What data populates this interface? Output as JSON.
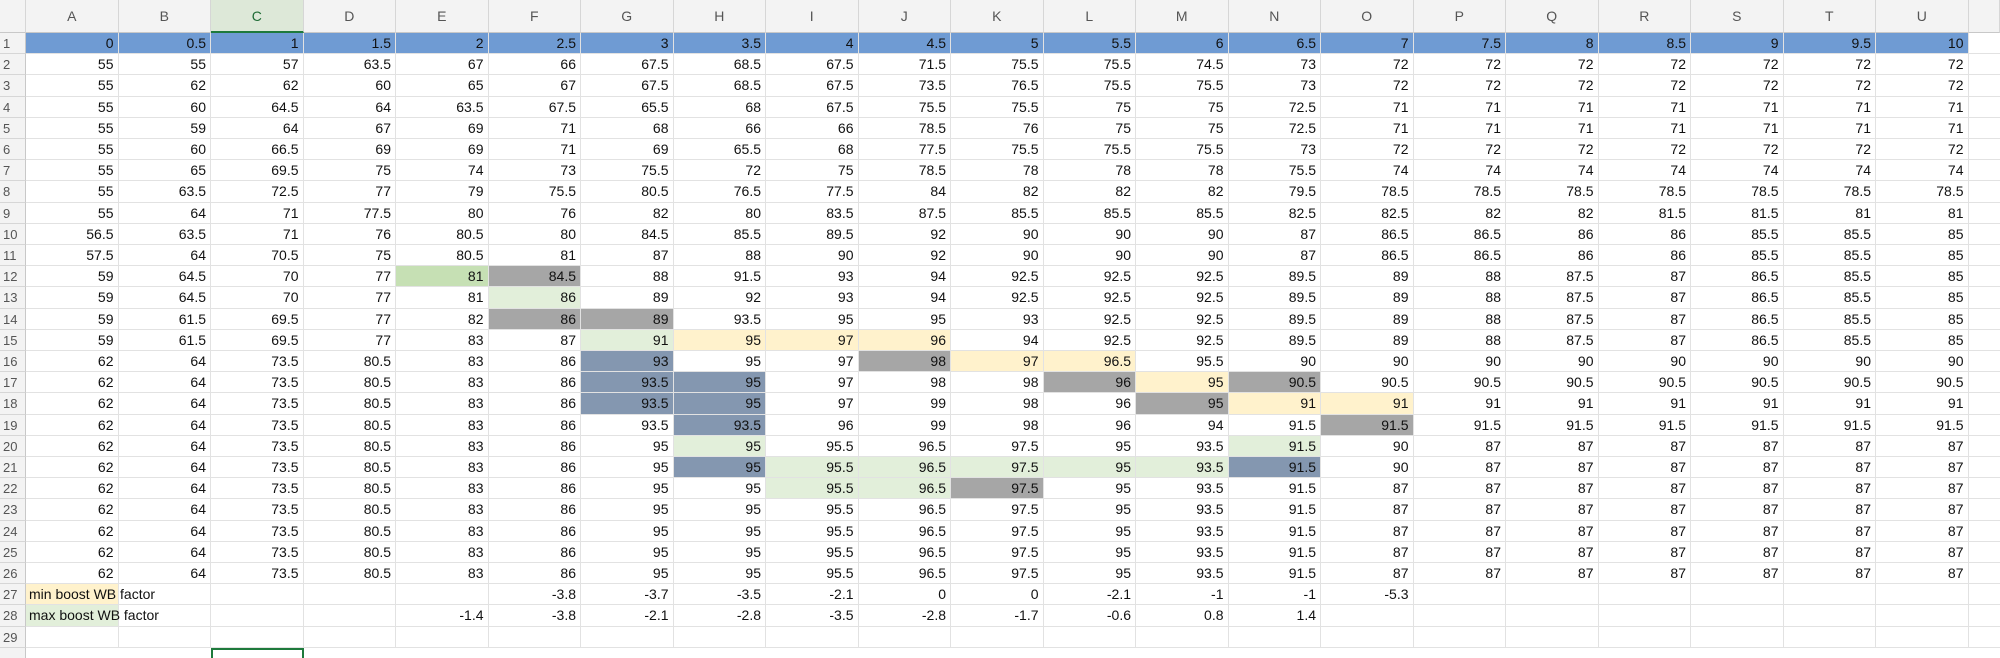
{
  "table": {
    "columns": [
      "A",
      "B",
      "C",
      "D",
      "E",
      "F",
      "G",
      "H",
      "I",
      "J",
      "K",
      "L",
      "M",
      "N",
      "O",
      "P",
      "Q",
      "R",
      "S",
      "T",
      "U"
    ],
    "row_numbers": [
      1,
      2,
      3,
      4,
      5,
      6,
      7,
      8,
      9,
      10,
      11,
      12,
      13,
      14,
      15,
      16,
      17,
      18,
      19,
      20,
      21,
      22,
      23,
      24,
      25,
      26,
      27,
      28,
      29
    ],
    "rows": [
      [
        0,
        0.5,
        1,
        1.5,
        2,
        2.5,
        3,
        3.5,
        4,
        4.5,
        5,
        5.5,
        6,
        6.5,
        7,
        7.5,
        8,
        8.5,
        9,
        9.5,
        10
      ],
      [
        55,
        55,
        57,
        63.5,
        67,
        66,
        67.5,
        68.5,
        67.5,
        71.5,
        75.5,
        75.5,
        74.5,
        73,
        72,
        72,
        72,
        72,
        72,
        72,
        72
      ],
      [
        55,
        62,
        62,
        60,
        65,
        67,
        67.5,
        68.5,
        67.5,
        73.5,
        76.5,
        75.5,
        75.5,
        73,
        72,
        72,
        72,
        72,
        72,
        72,
        72
      ],
      [
        55,
        60,
        64.5,
        64,
        63.5,
        67.5,
        65.5,
        68,
        67.5,
        75.5,
        75.5,
        75,
        75,
        72.5,
        71,
        71,
        71,
        71,
        71,
        71,
        71
      ],
      [
        55,
        59,
        64,
        67,
        69,
        71,
        68,
        66,
        66,
        78.5,
        76,
        75,
        75,
        72.5,
        71,
        71,
        71,
        71,
        71,
        71,
        71
      ],
      [
        55,
        60,
        66.5,
        69,
        69,
        71,
        69,
        65.5,
        68,
        77.5,
        75.5,
        75.5,
        75.5,
        73,
        72,
        72,
        72,
        72,
        72,
        72,
        72
      ],
      [
        55,
        65,
        69.5,
        75,
        74,
        73,
        75.5,
        72,
        75,
        78.5,
        78,
        78,
        78,
        75.5,
        74,
        74,
        74,
        74,
        74,
        74,
        74
      ],
      [
        55,
        63.5,
        72.5,
        77,
        79,
        75.5,
        80.5,
        76.5,
        77.5,
        84,
        82,
        82,
        82,
        79.5,
        78.5,
        78.5,
        78.5,
        78.5,
        78.5,
        78.5,
        78.5
      ],
      [
        55,
        64,
        71,
        77.5,
        80,
        76,
        82,
        80,
        83.5,
        87.5,
        85.5,
        85.5,
        85.5,
        82.5,
        82.5,
        82,
        82,
        81.5,
        81.5,
        81,
        81
      ],
      [
        56.5,
        63.5,
        71,
        76,
        80.5,
        80,
        84.5,
        85.5,
        89.5,
        92,
        90,
        90,
        90,
        87,
        86.5,
        86.5,
        86,
        86,
        85.5,
        85.5,
        85
      ],
      [
        57.5,
        64,
        70.5,
        75,
        80.5,
        81,
        87,
        88,
        90,
        92,
        90,
        90,
        90,
        87,
        86.5,
        86.5,
        86,
        86,
        85.5,
        85.5,
        85
      ],
      [
        59,
        64.5,
        70,
        77,
        81,
        84.5,
        88,
        91.5,
        93,
        94,
        92.5,
        92.5,
        92.5,
        89.5,
        89,
        88,
        87.5,
        87,
        86.5,
        85.5,
        85
      ],
      [
        59,
        64.5,
        70,
        77,
        81,
        86,
        89,
        92,
        93,
        94,
        92.5,
        92.5,
        92.5,
        89.5,
        89,
        88,
        87.5,
        87,
        86.5,
        85.5,
        85
      ],
      [
        59,
        61.5,
        69.5,
        77,
        82,
        86,
        89,
        93.5,
        95,
        95,
        93,
        92.5,
        92.5,
        89.5,
        89,
        88,
        87.5,
        87,
        86.5,
        85.5,
        85
      ],
      [
        59,
        61.5,
        69.5,
        77,
        83,
        87,
        91,
        95,
        97,
        96,
        94,
        92.5,
        92.5,
        89.5,
        89,
        88,
        87.5,
        87,
        86.5,
        85.5,
        85
      ],
      [
        62,
        64,
        73.5,
        80.5,
        83,
        86,
        93,
        95,
        97,
        98,
        97,
        96.5,
        95.5,
        90,
        90,
        90,
        90,
        90,
        90,
        90,
        90
      ],
      [
        62,
        64,
        73.5,
        80.5,
        83,
        86,
        93.5,
        95,
        97,
        98,
        98,
        96,
        95,
        90.5,
        90.5,
        90.5,
        90.5,
        90.5,
        90.5,
        90.5,
        90.5
      ],
      [
        62,
        64,
        73.5,
        80.5,
        83,
        86,
        93.5,
        95,
        97,
        99,
        98,
        96,
        95,
        91,
        91,
        91,
        91,
        91,
        91,
        91,
        91
      ],
      [
        62,
        64,
        73.5,
        80.5,
        83,
        86,
        93.5,
        93.5,
        96,
        99,
        98,
        96,
        94,
        91.5,
        91.5,
        91.5,
        91.5,
        91.5,
        91.5,
        91.5,
        91.5
      ],
      [
        62,
        64,
        73.5,
        80.5,
        83,
        86,
        95,
        95,
        95.5,
        96.5,
        97.5,
        95,
        93.5,
        91.5,
        90,
        87,
        87,
        87,
        87,
        87,
        87
      ],
      [
        62,
        64,
        73.5,
        80.5,
        83,
        86,
        95,
        95,
        95.5,
        96.5,
        97.5,
        95,
        93.5,
        91.5,
        90,
        87,
        87,
        87,
        87,
        87,
        87
      ],
      [
        62,
        64,
        73.5,
        80.5,
        83,
        86,
        95,
        95,
        95.5,
        96.5,
        97.5,
        95,
        93.5,
        91.5,
        87,
        87,
        87,
        87,
        87,
        87,
        87
      ],
      [
        62,
        64,
        73.5,
        80.5,
        83,
        86,
        95,
        95,
        95.5,
        96.5,
        97.5,
        95,
        93.5,
        91.5,
        87,
        87,
        87,
        87,
        87,
        87,
        87
      ],
      [
        62,
        64,
        73.5,
        80.5,
        83,
        86,
        95,
        95,
        95.5,
        96.5,
        97.5,
        95,
        93.5,
        91.5,
        87,
        87,
        87,
        87,
        87,
        87,
        87
      ],
      [
        62,
        64,
        73.5,
        80.5,
        83,
        86,
        95,
        95,
        95.5,
        96.5,
        97.5,
        95,
        93.5,
        91.5,
        87,
        87,
        87,
        87,
        87,
        87,
        87
      ],
      [
        62,
        64,
        73.5,
        80.5,
        83,
        86,
        95,
        95,
        95.5,
        96.5,
        97.5,
        95,
        93.5,
        91.5,
        87,
        87,
        87,
        87,
        87,
        87,
        87
      ],
      [
        "min boost WB factor",
        null,
        null,
        null,
        null,
        -3.8,
        -3.7,
        -3.5,
        -2.1,
        0,
        0,
        -2.1,
        -1,
        -1,
        -5.3,
        null,
        null,
        null,
        null,
        null,
        null
      ],
      [
        "max boost WB factor",
        null,
        null,
        null,
        -1.4,
        -3.8,
        -2.1,
        -2.8,
        -3.5,
        -2.8,
        -1.7,
        -0.6,
        0.8,
        1.4,
        null,
        null,
        null,
        null,
        null,
        null,
        null
      ],
      [
        null,
        null,
        null,
        null,
        null,
        null,
        null,
        null,
        null,
        null,
        null,
        null,
        null,
        null,
        null,
        null,
        null,
        null,
        null,
        null,
        null
      ]
    ],
    "row_fills": [
      {
        "row": 1,
        "color": "#6f9bd3"
      }
    ],
    "fills": [
      {
        "row": 12,
        "col": "E",
        "color": "#c6e0b4"
      },
      {
        "row": 12,
        "col": "F",
        "color": "#a6a6a6"
      },
      {
        "row": 13,
        "col": "F",
        "color": "#e2efda"
      },
      {
        "row": 14,
        "col": "F",
        "color": "#a6a6a6"
      },
      {
        "row": 14,
        "col": "G",
        "color": "#a6a6a6"
      },
      {
        "row": 15,
        "col": "G",
        "color": "#e2efda"
      },
      {
        "row": 15,
        "col": "H",
        "color": "#fff2cc"
      },
      {
        "row": 15,
        "col": "I",
        "color": "#fff2cc"
      },
      {
        "row": 15,
        "col": "J",
        "color": "#fff2cc"
      },
      {
        "row": 16,
        "col": "G",
        "color": "#8497b0"
      },
      {
        "row": 16,
        "col": "J",
        "color": "#a6a6a6"
      },
      {
        "row": 16,
        "col": "K",
        "color": "#fff2cc"
      },
      {
        "row": 16,
        "col": "L",
        "color": "#fff2cc"
      },
      {
        "row": 17,
        "col": "G",
        "color": "#8497b0"
      },
      {
        "row": 17,
        "col": "H",
        "color": "#8497b0"
      },
      {
        "row": 17,
        "col": "L",
        "color": "#a6a6a6"
      },
      {
        "row": 17,
        "col": "M",
        "color": "#fff2cc"
      },
      {
        "row": 17,
        "col": "N",
        "color": "#a6a6a6"
      },
      {
        "row": 18,
        "col": "G",
        "color": "#8497b0"
      },
      {
        "row": 18,
        "col": "H",
        "color": "#8497b0"
      },
      {
        "row": 18,
        "col": "M",
        "color": "#a6a6a6"
      },
      {
        "row": 18,
        "col": "N",
        "color": "#fff2cc"
      },
      {
        "row": 18,
        "col": "O",
        "color": "#fff2cc"
      },
      {
        "row": 19,
        "col": "H",
        "color": "#8497b0"
      },
      {
        "row": 19,
        "col": "O",
        "color": "#a6a6a6"
      },
      {
        "row": 20,
        "col": "H",
        "color": "#e2efda"
      },
      {
        "row": 20,
        "col": "N",
        "color": "#e2efda"
      },
      {
        "row": 21,
        "col": "H",
        "color": "#8497b0"
      },
      {
        "row": 21,
        "col": "I",
        "color": "#e2efda"
      },
      {
        "row": 21,
        "col": "J",
        "color": "#e2efda"
      },
      {
        "row": 21,
        "col": "K",
        "color": "#e2efda"
      },
      {
        "row": 21,
        "col": "L",
        "color": "#e2efda"
      },
      {
        "row": 21,
        "col": "M",
        "color": "#e2efda"
      },
      {
        "row": 21,
        "col": "N",
        "color": "#8497b0"
      },
      {
        "row": 22,
        "col": "I",
        "color": "#e2efda"
      },
      {
        "row": 22,
        "col": "J",
        "color": "#e2efda"
      },
      {
        "row": 22,
        "col": "K",
        "color": "#a6a6a6"
      },
      {
        "row": 27,
        "col": "A",
        "color": "#fff2cc"
      },
      {
        "row": 28,
        "col": "A",
        "color": "#e2efda"
      }
    ]
  }
}
